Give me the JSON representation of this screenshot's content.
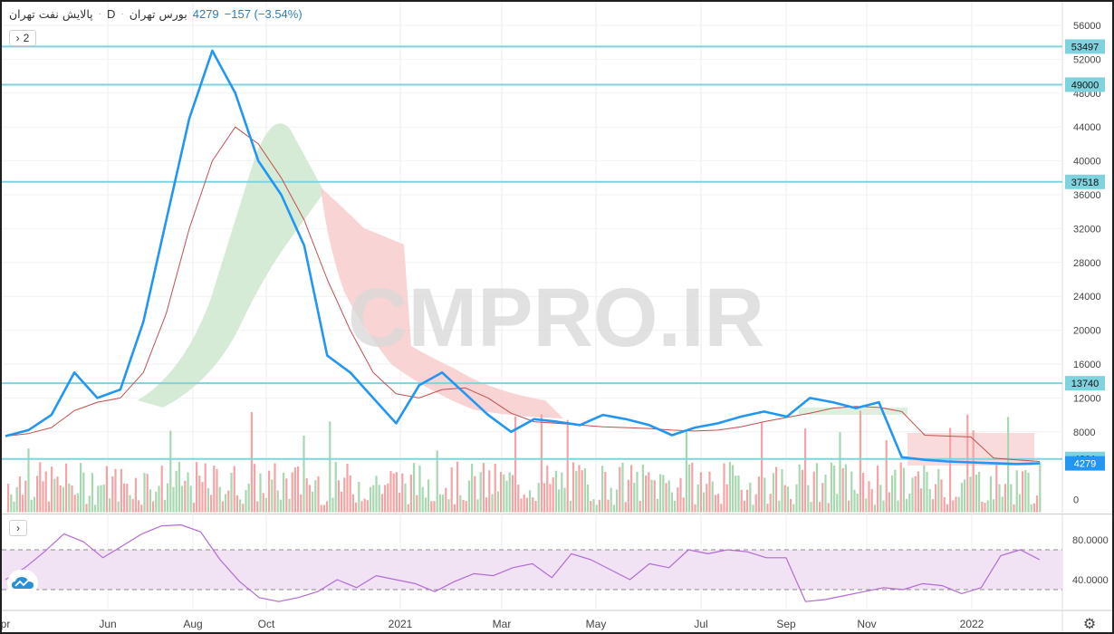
{
  "legend": {
    "symbol": "پالایش نفت تهران",
    "interval": "D",
    "exchange": "بورس تهران",
    "last": "4279",
    "change": "−157 (−3.54%)"
  },
  "controls": {
    "indicator_count": "2"
  },
  "watermark": "CMPRO.IR",
  "colors": {
    "price_line": "#2196f3",
    "ma_line": "#c0504d",
    "level_line": "#7fd3df",
    "cloud_bull": "#cfe8cf",
    "cloud_bear": "#f8cccc",
    "rsi_line": "#b36bd6",
    "rsi_band": "#f1e3f3",
    "vol_up": "#a7d8b0",
    "vol_down": "#f3a5a5"
  },
  "chart_data": [
    {
      "type": "line",
      "name": "price",
      "y_axis_ticks": [
        "56000",
        "52000",
        "48000",
        "44000",
        "40000",
        "36000",
        "32000",
        "28000",
        "24000",
        "20000",
        "16000",
        "12000",
        "8000",
        "0"
      ],
      "x_axis_ticks": [
        "Apr",
        "Jun",
        "Aug",
        "Oct",
        "2021",
        "Mar",
        "May",
        "Jul",
        "Sep",
        "Nov",
        "2022"
      ],
      "horizontal_levels": [
        53497,
        49000,
        37518,
        13740,
        4801
      ],
      "level_labels": [
        "53497",
        "49000",
        "37518",
        "13740",
        "4801"
      ],
      "last_price_label": "4279",
      "series": [
        {
          "values": [
            7500,
            8200,
            10000,
            15000,
            12000,
            13000,
            21000,
            33000,
            45000,
            53000,
            48000,
            40000,
            36000,
            30000,
            17000,
            15000,
            12000,
            9000,
            13500,
            15000,
            12500,
            10000,
            8000,
            9500,
            9200,
            8800,
            10000,
            9500,
            8800,
            7600,
            8500,
            9000,
            9800,
            10400,
            9800,
            12000,
            11500,
            10800,
            11500,
            5000,
            4700,
            4500,
            4400,
            4300,
            4200,
            4279
          ]
        },
        {
          "values": [
            7500,
            7800,
            8500,
            10500,
            11500,
            12000,
            15000,
            22000,
            32000,
            40000,
            44000,
            42000,
            38000,
            33000,
            26000,
            20000,
            15000,
            12500,
            12000,
            13000,
            13200,
            12000,
            10200,
            9200,
            9000,
            8800,
            8600,
            8500,
            8400,
            8200,
            8100,
            8200,
            8600,
            9200,
            9700,
            10200,
            10800,
            11000,
            10900,
            10400,
            7600,
            7500,
            7400,
            4900,
            4700,
            4500
          ]
        }
      ]
    },
    {
      "type": "line",
      "name": "rsi",
      "y_axis_ticks": [
        "80.0000",
        "40.0000"
      ],
      "band": [
        70,
        30
      ],
      "series": [
        {
          "values": [
            40,
            52,
            68,
            86,
            78,
            62,
            74,
            86,
            94,
            95,
            88,
            60,
            38,
            22,
            18,
            22,
            28,
            40,
            32,
            44,
            40,
            36,
            28,
            38,
            46,
            44,
            52,
            56,
            42,
            66,
            60,
            50,
            40,
            56,
            52,
            70,
            66,
            70,
            68,
            62,
            62,
            18,
            20,
            24,
            28,
            32,
            30,
            36,
            34,
            26,
            32,
            64,
            70,
            60
          ]
        }
      ]
    }
  ]
}
